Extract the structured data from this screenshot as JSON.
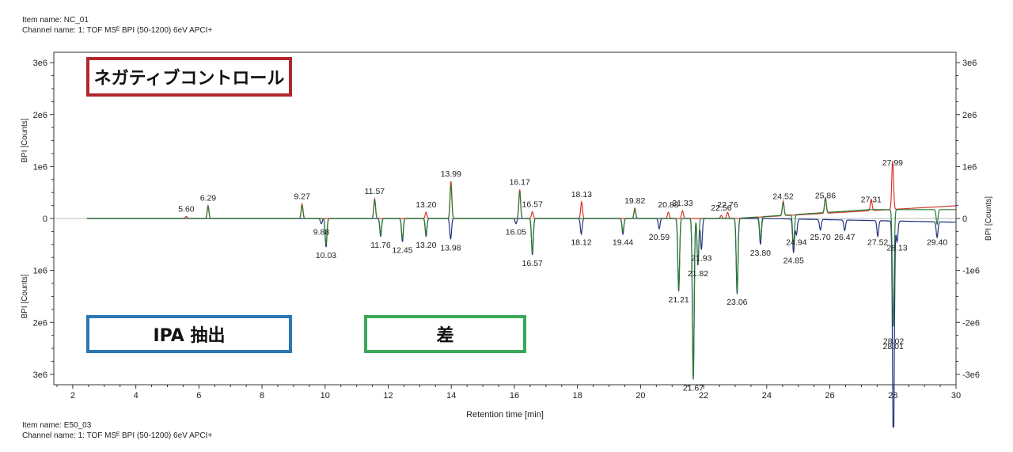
{
  "header_top": {
    "item_name": "Item name: NC_01",
    "channel_name": "Channel name: 1: TOF MSᴱ BPI (50-1200) 6eV APCI+"
  },
  "header_bottom": {
    "item_name": "Item name: E50_03",
    "channel_name": "Channel name: 1: TOF MSᴱ BPI (50-1200) 6eV APCI+"
  },
  "legend_boxes": {
    "negative_control": {
      "label": "ネガティブコントロール",
      "color": "#b0282c"
    },
    "ipa_extract": {
      "label": "IPA 抽出",
      "color": "#2a77b5"
    },
    "difference": {
      "label": "差",
      "color": "#3aa857"
    }
  },
  "colors": {
    "negative_control": "#d7362d",
    "ipa_extract": "#25337f",
    "difference": "#2b7a34",
    "axis": "#333333"
  },
  "chart_data": {
    "type": "line",
    "title": "",
    "xlabel": "Retention time [min]",
    "ylabel_left_top": "BPI [Counts]",
    "ylabel_left_bottom": "BPI [Counts]",
    "ylabel_right": "BPI [Counts]",
    "xlim": [
      1.4,
      30
    ],
    "ylim": [
      -3200000.0,
      3200000.0
    ],
    "x_ticks": [
      2,
      4,
      6,
      8,
      10,
      12,
      14,
      16,
      18,
      20,
      22,
      24,
      26,
      28,
      30
    ],
    "x_tick_labels": [
      "2",
      "4",
      "6",
      "8",
      "10",
      "12",
      "14",
      "16",
      "18",
      "20",
      "22",
      "24",
      "26",
      "28",
      "30"
    ],
    "y_ticks": [
      3000000,
      2000000,
      1000000,
      0,
      -1000000,
      -2000000,
      -3000000
    ],
    "y_tick_labels_left": [
      "3e6",
      "2e6",
      "1e6",
      "0",
      "1e6",
      "2e6",
      "3e6"
    ],
    "y_tick_labels_right": [
      "3e6",
      "2e6",
      "1e6",
      "0",
      "-1e6",
      "-2e6",
      "-3e6"
    ],
    "series": [
      {
        "name": "ネガティブコントロール",
        "orientation": "up",
        "peaks": [
          [
            5.6,
            40000
          ],
          [
            6.29,
            250000
          ],
          [
            9.27,
            280000
          ],
          [
            11.57,
            380000
          ],
          [
            13.2,
            120000
          ],
          [
            13.99,
            720000
          ],
          [
            16.17,
            560000
          ],
          [
            16.57,
            130000
          ],
          [
            18.13,
            320000
          ],
          [
            19.82,
            200000
          ],
          [
            20.88,
            120000
          ],
          [
            21.33,
            150000
          ],
          [
            22.56,
            60000
          ],
          [
            22.76,
            120000
          ],
          [
            24.52,
            280000
          ],
          [
            25.86,
            300000
          ],
          [
            27.31,
            220000
          ],
          [
            27.99,
            930000
          ]
        ]
      },
      {
        "name": "IPA 抽出",
        "orientation": "down",
        "peaks": [
          [
            9.88,
            100000
          ],
          [
            10.03,
            550000
          ],
          [
            11.76,
            350000
          ],
          [
            12.45,
            450000
          ],
          [
            13.2,
            350000
          ],
          [
            13.98,
            400000
          ],
          [
            16.05,
            100000
          ],
          [
            16.57,
            700000
          ],
          [
            18.12,
            300000
          ],
          [
            19.44,
            300000
          ],
          [
            20.59,
            200000
          ],
          [
            21.21,
            1400000
          ],
          [
            21.67,
            3100000
          ],
          [
            21.82,
            900000
          ],
          [
            21.93,
            600000
          ],
          [
            23.06,
            1450000
          ],
          [
            23.8,
            500000
          ],
          [
            24.85,
            650000
          ],
          [
            24.94,
            300000
          ],
          [
            25.7,
            200000
          ],
          [
            26.47,
            200000
          ],
          [
            27.52,
            300000
          ],
          [
            28.01,
            2300000
          ],
          [
            28.02,
            2200000
          ],
          [
            28.13,
            400000
          ],
          [
            29.4,
            300000
          ]
        ]
      },
      {
        "name": "差",
        "orientation": "both",
        "peaks": [
          [
            6.29,
            220000
          ],
          [
            9.27,
            250000
          ],
          [
            10.03,
            -500000
          ],
          [
            11.57,
            350000
          ],
          [
            11.76,
            -300000
          ],
          [
            12.45,
            -400000
          ],
          [
            13.2,
            -300000
          ],
          [
            13.99,
            650000
          ],
          [
            16.17,
            520000
          ],
          [
            16.57,
            -650000
          ],
          [
            19.44,
            -250000
          ],
          [
            19.82,
            180000
          ],
          [
            21.21,
            -1350000
          ],
          [
            21.67,
            -3100000
          ],
          [
            21.82,
            -850000
          ],
          [
            23.06,
            -1400000
          ],
          [
            23.8,
            -450000
          ],
          [
            24.52,
            250000
          ],
          [
            24.85,
            -600000
          ],
          [
            25.86,
            280000
          ],
          [
            28.01,
            -2250000
          ],
          [
            29.4,
            -280000
          ]
        ]
      }
    ],
    "annotations": [
      {
        "text": "5.60",
        "x": 5.6,
        "y": 40000
      },
      {
        "text": "6.29",
        "x": 6.29,
        "y": 250000
      },
      {
        "text": "9.27",
        "x": 9.27,
        "y": 280000
      },
      {
        "text": "11.57",
        "x": 11.57,
        "y": 380000
      },
      {
        "text": "13.20",
        "x": 13.2,
        "y": 120000
      },
      {
        "text": "13.99",
        "x": 13.99,
        "y": 720000
      },
      {
        "text": "16.17",
        "x": 16.17,
        "y": 560000
      },
      {
        "text": "16.57",
        "x": 16.57,
        "y": 130000
      },
      {
        "text": "18.13",
        "x": 18.13,
        "y": 320000
      },
      {
        "text": "19.82",
        "x": 19.82,
        "y": 200000
      },
      {
        "text": "20.88",
        "x": 20.88,
        "y": 120000
      },
      {
        "text": "21.33",
        "x": 21.33,
        "y": 150000
      },
      {
        "text": "22.56",
        "x": 22.56,
        "y": 60000
      },
      {
        "text": "22.76",
        "x": 22.76,
        "y": 120000
      },
      {
        "text": "24.52",
        "x": 24.52,
        "y": 280000
      },
      {
        "text": "25.86",
        "x": 25.86,
        "y": 300000
      },
      {
        "text": "27.31",
        "x": 27.31,
        "y": 220000
      },
      {
        "text": "27.99",
        "x": 27.99,
        "y": 930000
      },
      {
        "text": "9.88",
        "x": 9.88,
        "y": -100000
      },
      {
        "text": "10.03",
        "x": 10.03,
        "y": -550000
      },
      {
        "text": "11.76",
        "x": 11.76,
        "y": -350000
      },
      {
        "text": "12.45",
        "x": 12.45,
        "y": -450000
      },
      {
        "text": "13.20",
        "x": 13.2,
        "y": -350000
      },
      {
        "text": "13.98",
        "x": 13.98,
        "y": -400000
      },
      {
        "text": "16.05",
        "x": 16.05,
        "y": -100000
      },
      {
        "text": "16.57",
        "x": 16.57,
        "y": -700000
      },
      {
        "text": "18.12",
        "x": 18.12,
        "y": -300000
      },
      {
        "text": "19.44",
        "x": 19.44,
        "y": -300000
      },
      {
        "text": "20.59",
        "x": 20.59,
        "y": -200000
      },
      {
        "text": "21.21",
        "x": 21.21,
        "y": -1400000
      },
      {
        "text": "21.67",
        "x": 21.67,
        "y": -3100000
      },
      {
        "text": "21.82",
        "x": 21.82,
        "y": -900000
      },
      {
        "text": "21.93",
        "x": 21.93,
        "y": -600000
      },
      {
        "text": "23.06",
        "x": 23.06,
        "y": -1450000
      },
      {
        "text": "23.80",
        "x": 23.8,
        "y": -500000
      },
      {
        "text": "24.85",
        "x": 24.85,
        "y": -650000
      },
      {
        "text": "24.94",
        "x": 24.94,
        "y": -300000
      },
      {
        "text": "25.70",
        "x": 25.7,
        "y": -200000
      },
      {
        "text": "26.47",
        "x": 26.47,
        "y": -200000
      },
      {
        "text": "27.52",
        "x": 27.52,
        "y": -300000
      },
      {
        "text": "28.01",
        "x": 28.01,
        "y": -2300000
      },
      {
        "text": "28.02",
        "x": 28.02,
        "y": -2200000
      },
      {
        "text": "28.13",
        "x": 28.13,
        "y": -400000
      },
      {
        "text": "29.40",
        "x": 29.4,
        "y": -300000
      }
    ]
  }
}
